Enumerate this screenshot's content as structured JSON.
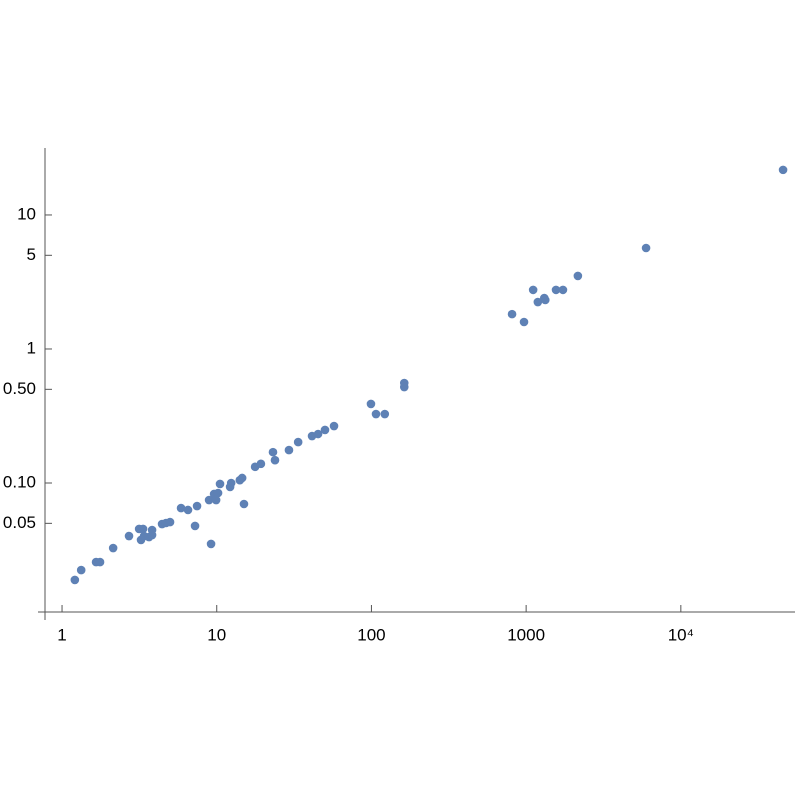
{
  "chart_data": {
    "type": "scatter",
    "xscale": "log",
    "yscale": "log",
    "grid": false,
    "color": "#5e81b5",
    "xlim": [
      0.776,
      54700
    ],
    "ylim": [
      0.0109,
      31.6
    ],
    "xticks": [
      1,
      10,
      100,
      1000,
      {
        "value": 10000,
        "label": "10⁴"
      }
    ],
    "yticks": [
      0.05,
      {
        "value": 0.1,
        "label": "0.10"
      },
      {
        "value": 0.5,
        "label": "0.50"
      },
      1,
      5,
      10
    ],
    "x": [
      1.21,
      1.33,
      1.66,
      1.76,
      2.14,
      2.71,
      3.15,
      3.24,
      3.34,
      3.39,
      3.65,
      3.82,
      3.82,
      4.43,
      4.7,
      4.99,
      5.88,
      6.52,
      7.24,
      7.46,
      8.92,
      9.19,
      9.61,
      9.91,
      10.2,
      10.5,
      12.2,
      12.4,
      14.1,
      14.6,
      15.0,
      17.7,
      19.3,
      23.1,
      23.8,
      29.3,
      33.6,
      41.3,
      45.2,
      50.1,
      57.3,
      99.3,
      107,
      122,
      163,
      163,
      811,
      969,
      1110,
      1190,
      1310,
      1330,
      1560,
      1730,
      2160,
      5960,
      45800
    ],
    "values": [
      0.0189,
      0.0224,
      0.0257,
      0.0257,
      0.0327,
      0.0402,
      0.0454,
      0.0376,
      0.0454,
      0.0402,
      0.0395,
      0.0446,
      0.0409,
      0.0494,
      0.0503,
      0.0511,
      0.065,
      0.0629,
      0.0478,
      0.0673,
      0.0746,
      0.0351,
      0.0828,
      0.0746,
      0.0842,
      0.0984,
      0.0934,
      0.1,
      0.105,
      0.109,
      0.0697,
      0.132,
      0.139,
      0.17,
      0.148,
      0.176,
      0.202,
      0.224,
      0.232,
      0.249,
      0.266,
      0.389,
      0.327,
      0.327,
      0.557,
      0.52,
      1.82,
      1.59,
      2.76,
      2.24,
      2.4,
      2.32,
      2.76,
      2.76,
      3.51,
      5.67,
      21.7
    ]
  }
}
